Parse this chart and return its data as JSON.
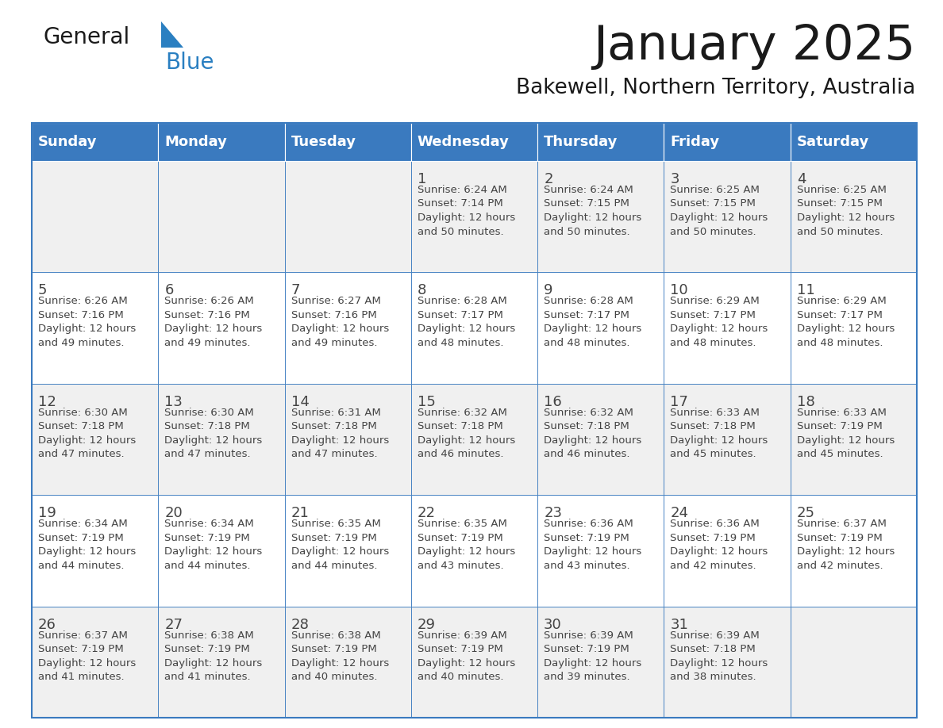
{
  "title": "January 2025",
  "subtitle": "Bakewell, Northern Territory, Australia",
  "header_color": "#3a7abf",
  "header_text_color": "#ffffff",
  "background_color": "#ffffff",
  "cell_bg_odd": "#f0f0f0",
  "cell_bg_even": "#ffffff",
  "text_color": "#444444",
  "line_color": "#3a7abf",
  "days_of_week": [
    "Sunday",
    "Monday",
    "Tuesday",
    "Wednesday",
    "Thursday",
    "Friday",
    "Saturday"
  ],
  "weeks": [
    [
      {
        "day": "",
        "info": ""
      },
      {
        "day": "",
        "info": ""
      },
      {
        "day": "",
        "info": ""
      },
      {
        "day": "1",
        "info": "Sunrise: 6:24 AM\nSunset: 7:14 PM\nDaylight: 12 hours\nand 50 minutes."
      },
      {
        "day": "2",
        "info": "Sunrise: 6:24 AM\nSunset: 7:15 PM\nDaylight: 12 hours\nand 50 minutes."
      },
      {
        "day": "3",
        "info": "Sunrise: 6:25 AM\nSunset: 7:15 PM\nDaylight: 12 hours\nand 50 minutes."
      },
      {
        "day": "4",
        "info": "Sunrise: 6:25 AM\nSunset: 7:15 PM\nDaylight: 12 hours\nand 50 minutes."
      }
    ],
    [
      {
        "day": "5",
        "info": "Sunrise: 6:26 AM\nSunset: 7:16 PM\nDaylight: 12 hours\nand 49 minutes."
      },
      {
        "day": "6",
        "info": "Sunrise: 6:26 AM\nSunset: 7:16 PM\nDaylight: 12 hours\nand 49 minutes."
      },
      {
        "day": "7",
        "info": "Sunrise: 6:27 AM\nSunset: 7:16 PM\nDaylight: 12 hours\nand 49 minutes."
      },
      {
        "day": "8",
        "info": "Sunrise: 6:28 AM\nSunset: 7:17 PM\nDaylight: 12 hours\nand 48 minutes."
      },
      {
        "day": "9",
        "info": "Sunrise: 6:28 AM\nSunset: 7:17 PM\nDaylight: 12 hours\nand 48 minutes."
      },
      {
        "day": "10",
        "info": "Sunrise: 6:29 AM\nSunset: 7:17 PM\nDaylight: 12 hours\nand 48 minutes."
      },
      {
        "day": "11",
        "info": "Sunrise: 6:29 AM\nSunset: 7:17 PM\nDaylight: 12 hours\nand 48 minutes."
      }
    ],
    [
      {
        "day": "12",
        "info": "Sunrise: 6:30 AM\nSunset: 7:18 PM\nDaylight: 12 hours\nand 47 minutes."
      },
      {
        "day": "13",
        "info": "Sunrise: 6:30 AM\nSunset: 7:18 PM\nDaylight: 12 hours\nand 47 minutes."
      },
      {
        "day": "14",
        "info": "Sunrise: 6:31 AM\nSunset: 7:18 PM\nDaylight: 12 hours\nand 47 minutes."
      },
      {
        "day": "15",
        "info": "Sunrise: 6:32 AM\nSunset: 7:18 PM\nDaylight: 12 hours\nand 46 minutes."
      },
      {
        "day": "16",
        "info": "Sunrise: 6:32 AM\nSunset: 7:18 PM\nDaylight: 12 hours\nand 46 minutes."
      },
      {
        "day": "17",
        "info": "Sunrise: 6:33 AM\nSunset: 7:18 PM\nDaylight: 12 hours\nand 45 minutes."
      },
      {
        "day": "18",
        "info": "Sunrise: 6:33 AM\nSunset: 7:19 PM\nDaylight: 12 hours\nand 45 minutes."
      }
    ],
    [
      {
        "day": "19",
        "info": "Sunrise: 6:34 AM\nSunset: 7:19 PM\nDaylight: 12 hours\nand 44 minutes."
      },
      {
        "day": "20",
        "info": "Sunrise: 6:34 AM\nSunset: 7:19 PM\nDaylight: 12 hours\nand 44 minutes."
      },
      {
        "day": "21",
        "info": "Sunrise: 6:35 AM\nSunset: 7:19 PM\nDaylight: 12 hours\nand 44 minutes."
      },
      {
        "day": "22",
        "info": "Sunrise: 6:35 AM\nSunset: 7:19 PM\nDaylight: 12 hours\nand 43 minutes."
      },
      {
        "day": "23",
        "info": "Sunrise: 6:36 AM\nSunset: 7:19 PM\nDaylight: 12 hours\nand 43 minutes."
      },
      {
        "day": "24",
        "info": "Sunrise: 6:36 AM\nSunset: 7:19 PM\nDaylight: 12 hours\nand 42 minutes."
      },
      {
        "day": "25",
        "info": "Sunrise: 6:37 AM\nSunset: 7:19 PM\nDaylight: 12 hours\nand 42 minutes."
      }
    ],
    [
      {
        "day": "26",
        "info": "Sunrise: 6:37 AM\nSunset: 7:19 PM\nDaylight: 12 hours\nand 41 minutes."
      },
      {
        "day": "27",
        "info": "Sunrise: 6:38 AM\nSunset: 7:19 PM\nDaylight: 12 hours\nand 41 minutes."
      },
      {
        "day": "28",
        "info": "Sunrise: 6:38 AM\nSunset: 7:19 PM\nDaylight: 12 hours\nand 40 minutes."
      },
      {
        "day": "29",
        "info": "Sunrise: 6:39 AM\nSunset: 7:19 PM\nDaylight: 12 hours\nand 40 minutes."
      },
      {
        "day": "30",
        "info": "Sunrise: 6:39 AM\nSunset: 7:19 PM\nDaylight: 12 hours\nand 39 minutes."
      },
      {
        "day": "31",
        "info": "Sunrise: 6:39 AM\nSunset: 7:18 PM\nDaylight: 12 hours\nand 38 minutes."
      },
      {
        "day": "",
        "info": ""
      }
    ]
  ],
  "logo_general_color": "#1a1a1a",
  "logo_blue_color": "#2a7fc1",
  "logo_triangle_color": "#2a7fc1"
}
